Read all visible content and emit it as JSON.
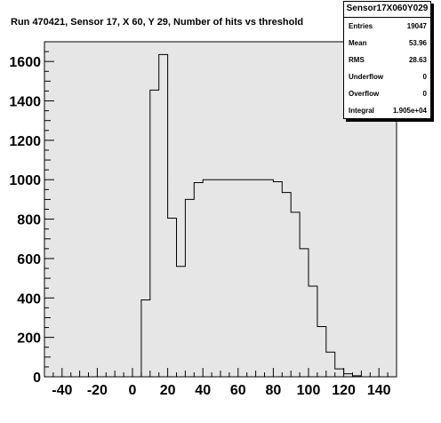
{
  "window": {
    "title": "Run 470421, Sensor 17, X 60, Y 29, Number of hits vs threshold"
  },
  "stats_box": {
    "name": "Sensor17X060Y029",
    "rows": [
      {
        "label": "Entries",
        "value": "19047"
      },
      {
        "label": "Mean",
        "value": "53.96"
      },
      {
        "label": "RMS",
        "value": "28.63"
      },
      {
        "label": "Underflow",
        "value": "0"
      },
      {
        "label": "Overflow",
        "value": "0"
      },
      {
        "label": "Integral",
        "value": "1.905e+04"
      }
    ]
  },
  "colors": {
    "frame_fill": "#e6e6e6",
    "line": "#000000",
    "page": "#ffffff"
  },
  "chart_data": {
    "type": "histogram",
    "title": "Run 470421, Sensor 17, X 60, Y 29, Number of hits vs threshold",
    "xlabel": "",
    "ylabel": "",
    "xlim": [
      -50,
      150
    ],
    "ylim": [
      0,
      1700
    ],
    "grid": false,
    "legend": "none",
    "bin_width": 5,
    "bin_edges_start": 5,
    "x_ticks": [
      "-40",
      "-20",
      "0",
      "20",
      "40",
      "60",
      "80",
      "100",
      "120",
      "140"
    ],
    "y_ticks": [
      "0",
      "200",
      "400",
      "600",
      "800",
      "1000",
      "1200",
      "1400",
      "1600"
    ],
    "x": [
      7.5,
      12.5,
      17.5,
      22.5,
      27.5,
      32.5,
      37.5,
      42.5,
      47.5,
      52.5,
      57.5,
      62.5,
      67.5,
      72.5,
      77.5,
      82.5,
      87.5,
      92.5,
      97.5,
      102.5,
      107.5,
      112.5,
      117.5,
      122.5,
      127.5
    ],
    "values": [
      390,
      1455,
      1635,
      805,
      560,
      900,
      985,
      1000,
      1000,
      1000,
      1000,
      1000,
      1000,
      1000,
      1000,
      990,
      935,
      835,
      650,
      460,
      255,
      125,
      40,
      15,
      5
    ]
  }
}
